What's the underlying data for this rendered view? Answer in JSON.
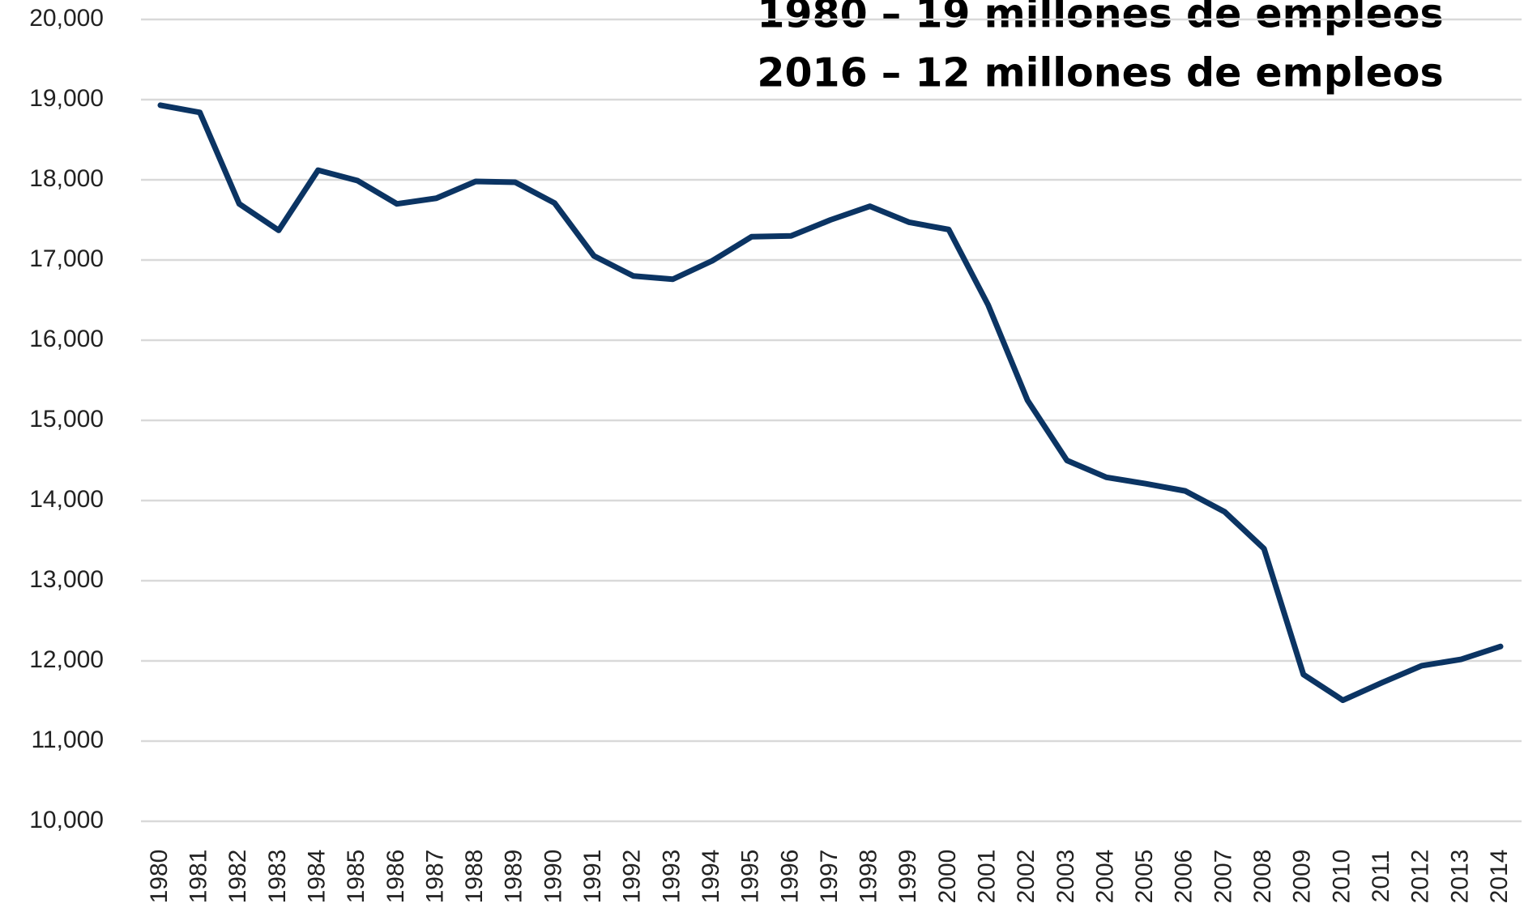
{
  "chart_data": {
    "type": "line",
    "annotations": [
      "1980 – 19 millones de empleos",
      "2016 – 12 millones de empleos"
    ],
    "categories": [
      "1980",
      "1981",
      "1982",
      "1983",
      "1984",
      "1985",
      "1986",
      "1987",
      "1988",
      "1989",
      "1990",
      "1991",
      "1992",
      "1993",
      "1994",
      "1995",
      "1996",
      "1997",
      "1998",
      "1999",
      "2000",
      "2001",
      "2002",
      "2003",
      "2004",
      "2005",
      "2006",
      "2007",
      "2008",
      "2009",
      "2010",
      "2011",
      "2012",
      "2013",
      "2014"
    ],
    "series": [
      {
        "color": "#0b3463",
        "values": [
          18930,
          18840,
          17700,
          17370,
          18120,
          17990,
          17700,
          17770,
          17980,
          17970,
          17710,
          17050,
          16800,
          16760,
          16990,
          17290,
          17300,
          17500,
          17670,
          17470,
          17380,
          16440,
          15250,
          14500,
          14290,
          14210,
          14120,
          13860,
          13400,
          11830,
          11510,
          11730,
          11940,
          12020,
          12180
        ]
      }
    ],
    "ylim": [
      10000,
      20000
    ],
    "yticks": [
      {
        "value": 10000,
        "label": "10,000"
      },
      {
        "value": 11000,
        "label": "11,000"
      },
      {
        "value": 12000,
        "label": "12,000"
      },
      {
        "value": 13000,
        "label": "13,000"
      },
      {
        "value": 14000,
        "label": "14,000"
      },
      {
        "value": 15000,
        "label": "15,000"
      },
      {
        "value": 16000,
        "label": "16,000"
      },
      {
        "value": 17000,
        "label": "17,000"
      },
      {
        "value": 18000,
        "label": "18,000"
      },
      {
        "value": 19000,
        "label": "19,000"
      },
      {
        "value": 20000,
        "label": "20,000"
      }
    ],
    "grid": true
  }
}
